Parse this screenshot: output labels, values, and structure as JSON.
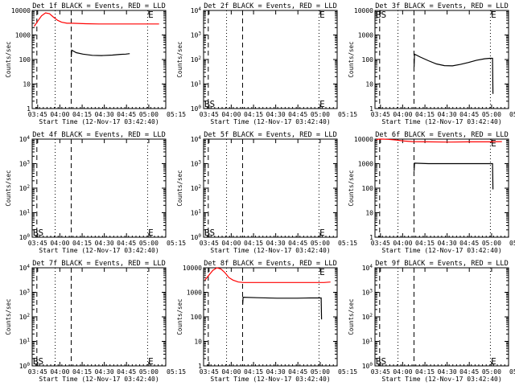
{
  "window": {
    "width_note": ""
  },
  "colors": {
    "events": "#000000",
    "lld": "#ff0000",
    "background": "#ffffff",
    "axes": "#000000"
  },
  "shared": {
    "xlabel": "Start Time (12-Nov-17 03:42:40)",
    "ylabel": "Counts/sec",
    "xticks": [
      "03:45",
      "04:00",
      "04:15",
      "04:30",
      "04:45",
      "05:00",
      "05:15"
    ]
  },
  "chart_data": [
    {
      "type": "line",
      "title": "Det 1f BLACK = Events, RED = LLD",
      "xlim": [
        0,
        100
      ],
      "ylim_exp": [
        0,
        4
      ],
      "log_y": true,
      "ytick_labels": [
        "1",
        "10",
        "100",
        "1000",
        "10000"
      ],
      "markers": {
        "dashed": [
          3.5,
          29.2
        ],
        "dotted": [
          17.2,
          86.4
        ]
      },
      "letters": [
        {
          "text": "E",
          "x": 86.8,
          "at": "top"
        }
      ],
      "series": [
        {
          "name": "RED = LLD",
          "color": "red",
          "points": [
            [
              1.5,
              3.35
            ],
            [
              4,
              3.55
            ],
            [
              7,
              3.78
            ],
            [
              10,
              3.9
            ],
            [
              13,
              3.87
            ],
            [
              16,
              3.72
            ],
            [
              19,
              3.6
            ],
            [
              22,
              3.52
            ],
            [
              26,
              3.48
            ],
            [
              30,
              3.48
            ],
            [
              40,
              3.46
            ],
            [
              50,
              3.45
            ],
            [
              60,
              3.45
            ],
            [
              70,
              3.45
            ],
            [
              80,
              3.45
            ],
            [
              95,
              3.45
            ]
          ]
        },
        {
          "name": "BLACK = Events",
          "color": "black",
          "points": [
            [
              29.2,
              2.1
            ],
            [
              29.6,
              2.38
            ],
            [
              33,
              2.28
            ],
            [
              38,
              2.22
            ],
            [
              45,
              2.17
            ],
            [
              52,
              2.16
            ],
            [
              60,
              2.18
            ],
            [
              66,
              2.21
            ],
            [
              70,
              2.22
            ],
            [
              73,
              2.24
            ]
          ]
        }
      ]
    },
    {
      "type": "line",
      "title": "Det 2f BLACK = Events, RED = LLD",
      "xlim": [
        0,
        100
      ],
      "ylim_exp": [
        0,
        4
      ],
      "log_y": true,
      "ytick_labels": [
        "10^0",
        "10^1",
        "10^2",
        "10^3",
        "10^4"
      ],
      "markers": {
        "dashed": [
          3.5,
          29.2
        ],
        "dotted": [
          17.2,
          86.4
        ]
      },
      "letters": [
        {
          "text": "BS",
          "x": 0.5,
          "at": "bottom"
        },
        {
          "text": "E",
          "x": 86.8,
          "at": "bottom"
        },
        {
          "text": "E",
          "x": 86.8,
          "at": "top"
        }
      ],
      "series": []
    },
    {
      "type": "line",
      "title": "Det 3f BLACK = Events, RED = LLD",
      "xlim": [
        0,
        100
      ],
      "ylim_exp": [
        0,
        4
      ],
      "log_y": true,
      "ytick_labels": [
        "1",
        "10",
        "100",
        "1000",
        "10000"
      ],
      "markers": {
        "dashed": [
          3.5,
          29.2
        ],
        "dotted": [
          17.2,
          86.4
        ]
      },
      "letters": [
        {
          "text": "BS",
          "x": 0.5,
          "at": "top"
        },
        {
          "text": "E",
          "x": 86.8,
          "at": "top"
        }
      ],
      "series": [
        {
          "name": "BLACK = Events",
          "color": "black",
          "points": [
            [
              29.3,
              1.7
            ],
            [
              29.6,
              2.22
            ],
            [
              34,
              2.1
            ],
            [
              40,
              1.95
            ],
            [
              46,
              1.82
            ],
            [
              52,
              1.75
            ],
            [
              58,
              1.74
            ],
            [
              64,
              1.8
            ],
            [
              70,
              1.88
            ],
            [
              76,
              1.97
            ],
            [
              82,
              2.03
            ],
            [
              86,
              2.05
            ],
            [
              88,
              2.05
            ],
            [
              88.3,
              0.6
            ]
          ]
        }
      ]
    },
    {
      "type": "line",
      "title": "Det 4f BLACK = Events, RED = LLD",
      "xlim": [
        0,
        100
      ],
      "ylim_exp": [
        0,
        4
      ],
      "log_y": true,
      "ytick_labels": [
        "10^0",
        "10^1",
        "10^2",
        "10^3",
        "10^4"
      ],
      "markers": {
        "dashed": [
          3.5,
          29.2
        ],
        "dotted": [
          17.2,
          86.4
        ]
      },
      "letters": [
        {
          "text": "BS",
          "x": 0.5,
          "at": "bottom"
        },
        {
          "text": "E",
          "x": 86.8,
          "at": "bottom"
        }
      ],
      "series": []
    },
    {
      "type": "line",
      "title": "Det 5f BLACK = Events, RED = LLD",
      "xlim": [
        0,
        100
      ],
      "ylim_exp": [
        0,
        4
      ],
      "log_y": true,
      "ytick_labels": [
        "10^0",
        "10^1",
        "10^2",
        "10^3",
        "10^4"
      ],
      "markers": {
        "dashed": [
          3.5,
          29.2
        ],
        "dotted": [
          17.2,
          86.4
        ]
      },
      "letters": [
        {
          "text": "BS",
          "x": 0.5,
          "at": "bottom"
        },
        {
          "text": "E",
          "x": 86.8,
          "at": "bottom"
        }
      ],
      "series": []
    },
    {
      "type": "line",
      "title": "Det 6f BLACK = Events, RED = LLD",
      "xlim": [
        0,
        100
      ],
      "ylim_exp": [
        0,
        4
      ],
      "log_y": true,
      "ytick_labels": [
        "1",
        "10",
        "100",
        "1000",
        "10000"
      ],
      "markers": {
        "dashed": [
          3.5,
          29.2
        ],
        "dotted": [
          17.2,
          86.4
        ]
      },
      "letters": [
        {
          "text": "E",
          "x": 86.8,
          "at": "top"
        }
      ],
      "series": [
        {
          "name": "RED = LLD",
          "color": "red",
          "points": [
            [
              1,
              3.98
            ],
            [
              3,
              4.0
            ],
            [
              6,
              4.0
            ],
            [
              10,
              3.99
            ],
            [
              16,
              3.96
            ],
            [
              22,
              3.92
            ],
            [
              28,
              3.9
            ],
            [
              40,
              3.89
            ],
            [
              55,
              3.88
            ],
            [
              70,
              3.89
            ],
            [
              85,
              3.89
            ],
            [
              95,
              3.9
            ]
          ]
        },
        {
          "name": "BLACK = Events",
          "color": "black",
          "points": [
            [
              29.3,
              2.7
            ],
            [
              29.6,
              3.02
            ],
            [
              40,
              3.0
            ],
            [
              55,
              3.0
            ],
            [
              70,
              3.0
            ],
            [
              80,
              3.0
            ],
            [
              86,
              3.0
            ],
            [
              88,
              3.0
            ],
            [
              88.3,
              1.95
            ]
          ]
        }
      ]
    },
    {
      "type": "line",
      "title": "Det 7f BLACK = Events, RED = LLD",
      "xlim": [
        0,
        100
      ],
      "ylim_exp": [
        0,
        4
      ],
      "log_y": true,
      "ytick_labels": [
        "10^0",
        "10^1",
        "10^2",
        "10^3",
        "10^4"
      ],
      "markers": {
        "dashed": [
          3.5,
          29.2
        ],
        "dotted": [
          17.2,
          86.4
        ]
      },
      "letters": [
        {
          "text": "BS",
          "x": 0.5,
          "at": "bottom"
        },
        {
          "text": "E",
          "x": 86.8,
          "at": "bottom"
        }
      ],
      "series": []
    },
    {
      "type": "line",
      "title": "Det 8f BLACK = Events, RED = LLD",
      "xlim": [
        0,
        100
      ],
      "ylim_exp": [
        0,
        4
      ],
      "log_y": true,
      "ytick_labels": [
        "1",
        "10",
        "100",
        "1000",
        "10000"
      ],
      "markers": {
        "dashed": [
          3.5,
          29.2
        ],
        "dotted": [
          17.2,
          86.4
        ]
      },
      "letters": [
        {
          "text": "E",
          "x": 86.8,
          "at": "top"
        }
      ],
      "series": [
        {
          "name": "RED = LLD",
          "color": "red",
          "points": [
            [
              1,
              3.5
            ],
            [
              4,
              3.7
            ],
            [
              7,
              3.9
            ],
            [
              10,
              4.0
            ],
            [
              13,
              3.95
            ],
            [
              16,
              3.8
            ],
            [
              19,
              3.6
            ],
            [
              22,
              3.5
            ],
            [
              26,
              3.42
            ],
            [
              30,
              3.4
            ],
            [
              45,
              3.4
            ],
            [
              60,
              3.4
            ],
            [
              75,
              3.4
            ],
            [
              90,
              3.4
            ],
            [
              95,
              3.42
            ]
          ]
        },
        {
          "name": "BLACK = Events",
          "color": "black",
          "points": [
            [
              29.3,
              2.5
            ],
            [
              29.6,
              2.8
            ],
            [
              40,
              2.78
            ],
            [
              55,
              2.76
            ],
            [
              70,
              2.76
            ],
            [
              80,
              2.77
            ],
            [
              86,
              2.77
            ],
            [
              88,
              2.77
            ],
            [
              88.3,
              1.9
            ]
          ]
        }
      ]
    },
    {
      "type": "line",
      "title": "Det 9f BLACK = Events, RED = LLD",
      "xlim": [
        0,
        100
      ],
      "ylim_exp": [
        0,
        4
      ],
      "log_y": true,
      "ytick_labels": [
        "10^0",
        "10^1",
        "10^2",
        "10^3",
        "10^4"
      ],
      "markers": {
        "dashed": [
          3.5,
          29.2
        ],
        "dotted": [
          17.2,
          86.4
        ]
      },
      "letters": [
        {
          "text": "BS",
          "x": 0.5,
          "at": "bottom"
        },
        {
          "text": "E",
          "x": 86.8,
          "at": "bottom"
        }
      ],
      "series": []
    }
  ]
}
